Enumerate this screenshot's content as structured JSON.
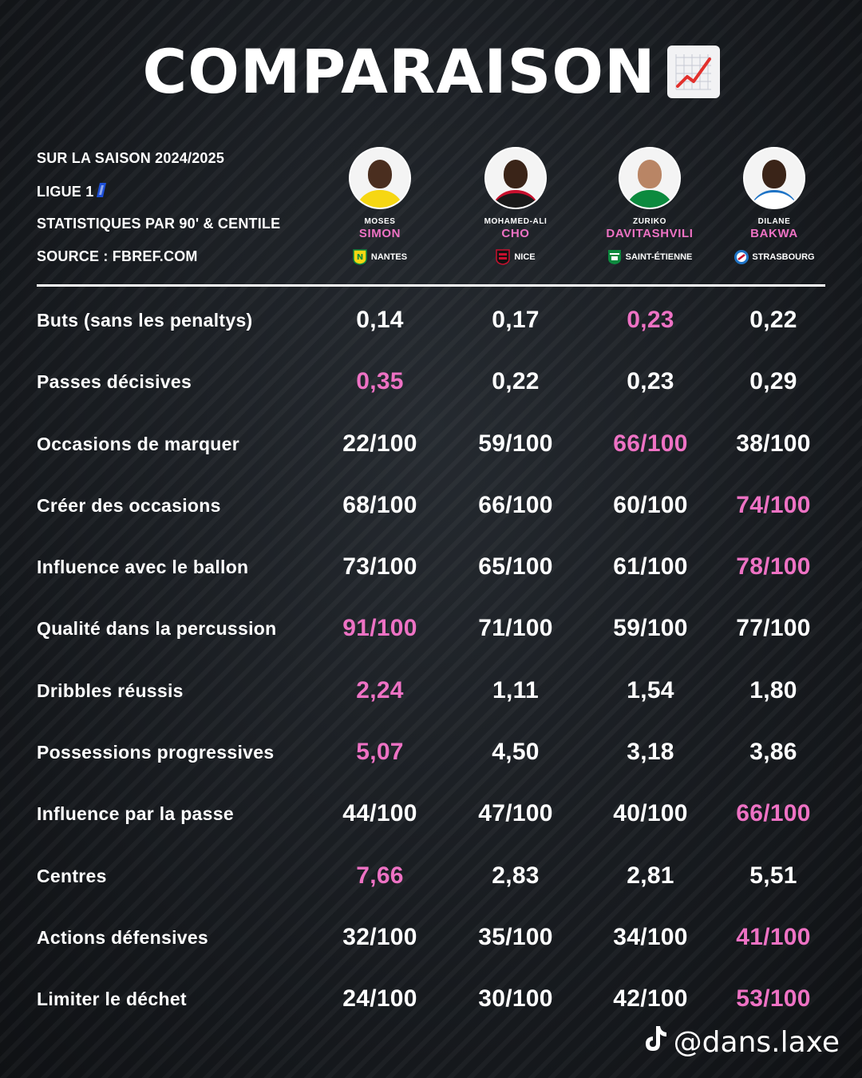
{
  "title": "COMPARAISON",
  "title_icon": "chart-increasing-icon",
  "info": {
    "season": "SUR LA SAISON 2024/2025",
    "league": "LIGUE 1",
    "stats_type": "STATISTIQUES PAR 90' & CENTILE",
    "source": "SOURCE : FBREF.COM"
  },
  "highlight_color": "#ee72c4",
  "players": [
    {
      "first_name": "MOSES",
      "last_name": "SIMON",
      "club": "NANTES",
      "crest_color": "#f6d713"
    },
    {
      "first_name": "MOHAMED-ALI",
      "last_name": "CHO",
      "club": "NICE",
      "crest_color": "#c8102e"
    },
    {
      "first_name": "ZURIKO",
      "last_name": "DAVITASHVILI",
      "club": "SAINT-ÉTIENNE",
      "crest_color": "#0c8a3e"
    },
    {
      "first_name": "DILANE",
      "last_name": "BAKWA",
      "club": "STRASBOURG",
      "crest_color": "#1f74c6"
    }
  ],
  "rows": [
    {
      "label": "Buts (sans les penaltys)",
      "values": [
        "0,14",
        "0,17",
        "0,23",
        "0,22"
      ],
      "highlight": 2
    },
    {
      "label": "Passes décisives",
      "values": [
        "0,35",
        "0,22",
        "0,23",
        "0,29"
      ],
      "highlight": 0
    },
    {
      "label": "Occasions de marquer",
      "values": [
        "22/100",
        "59/100",
        "66/100",
        "38/100"
      ],
      "highlight": 2
    },
    {
      "label": "Créer des occasions",
      "values": [
        "68/100",
        "66/100",
        "60/100",
        "74/100"
      ],
      "highlight": 3
    },
    {
      "label": "Influence avec le ballon",
      "values": [
        "73/100",
        "65/100",
        "61/100",
        "78/100"
      ],
      "highlight": 3
    },
    {
      "label": "Qualité dans la percussion",
      "values": [
        "91/100",
        "71/100",
        "59/100",
        "77/100"
      ],
      "highlight": 0
    },
    {
      "label": "Dribbles réussis",
      "values": [
        "2,24",
        "1,11",
        "1,54",
        "1,80"
      ],
      "highlight": 0
    },
    {
      "label": "Possessions progressives",
      "values": [
        "5,07",
        "4,50",
        "3,18",
        "3,86"
      ],
      "highlight": 0
    },
    {
      "label": "Influence par la passe",
      "values": [
        "44/100",
        "47/100",
        "40/100",
        "66/100"
      ],
      "highlight": 3
    },
    {
      "label": "Centres",
      "values": [
        "7,66",
        "2,83",
        "2,81",
        "5,51"
      ],
      "highlight": 0
    },
    {
      "label": "Actions défensives",
      "values": [
        "32/100",
        "35/100",
        "34/100",
        "41/100"
      ],
      "highlight": 3
    },
    {
      "label": "Limiter le déchet",
      "values": [
        "24/100",
        "30/100",
        "42/100",
        "53/100"
      ],
      "highlight": 3
    }
  ],
  "watermark": "@dans.laxe",
  "watermark_icon": "tiktok-icon"
}
